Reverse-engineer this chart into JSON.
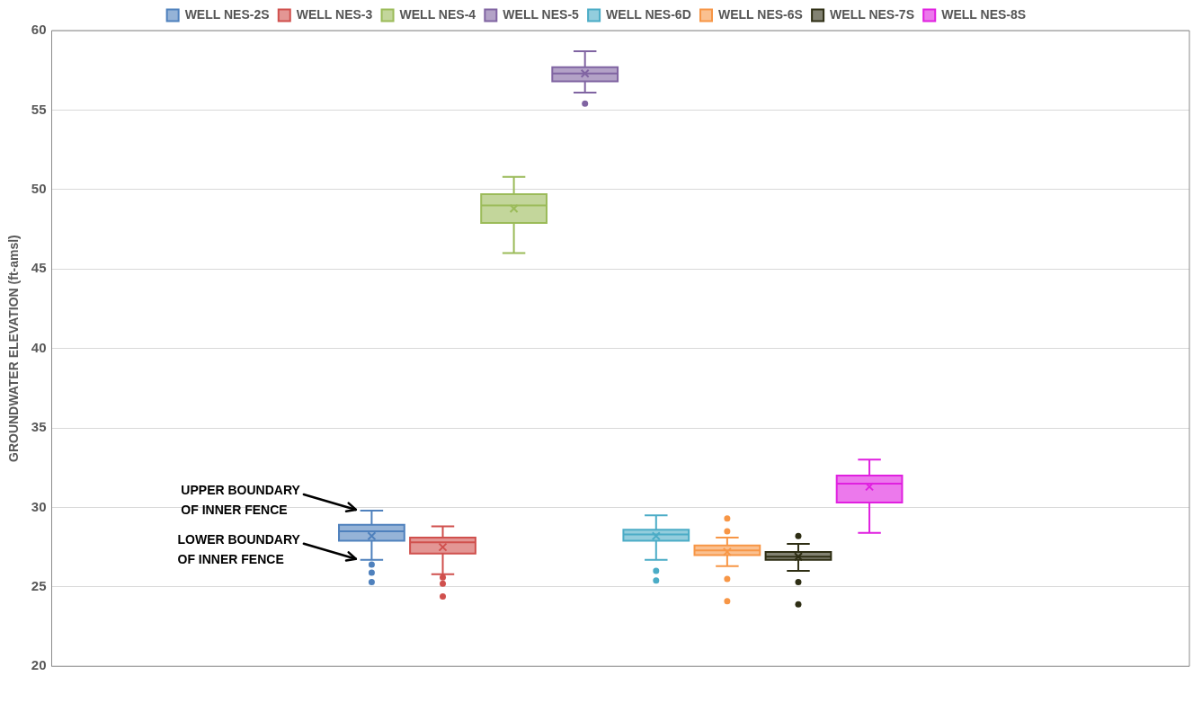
{
  "chart_data": {
    "type": "box",
    "ylabel": "GROUNDWATER ELEVATION (ft-amsl)",
    "categories": [
      null
    ],
    "ylim": [
      20,
      60
    ],
    "yticks": [
      20,
      25,
      30,
      35,
      40,
      45,
      50,
      55,
      60
    ],
    "grid": "y",
    "legend": "top",
    "marker": "circle",
    "annotations": [
      "UPPER BOUNDARY\nOF INNER FENCE",
      "LOWER BOUNDARY\nOF INNER FENCE"
    ],
    "series": [
      {
        "name": "WELL NES-2S",
        "color": "#4f81bd",
        "boxes": [
          {
            "low": 26.7,
            "q1": 27.9,
            "median": 28.5,
            "q3": 28.9,
            "high": 29.8,
            "mean": 28.2,
            "outliers": [
              26.4,
              25.9,
              25.3
            ]
          }
        ]
      },
      {
        "name": "WELL NES-3",
        "color": "#d0504d",
        "boxes": [
          {
            "low": 25.8,
            "q1": 27.1,
            "median": 27.8,
            "q3": 28.1,
            "high": 28.8,
            "mean": 27.5,
            "outliers": [
              25.6,
              25.2,
              24.4
            ]
          }
        ]
      },
      {
        "name": "WELL NES-4",
        "color": "#9bbb59",
        "boxes": [
          {
            "low": 46.0,
            "q1": 47.9,
            "median": 49.0,
            "q3": 49.7,
            "high": 50.8,
            "mean": 48.8
          }
        ]
      },
      {
        "name": "WELL NES-5",
        "color": "#8064a2",
        "boxes": [
          {
            "low": 56.1,
            "q1": 56.8,
            "median": 57.3,
            "q3": 57.7,
            "high": 58.7,
            "mean": 57.3,
            "outliers": [
              55.4
            ]
          }
        ]
      },
      {
        "name": "WELL NES-6D",
        "color": "#4bacc6",
        "boxes": [
          {
            "low": 26.7,
            "q1": 27.9,
            "median": 28.3,
            "q3": 28.6,
            "high": 29.5,
            "mean": 28.2,
            "outliers": [
              26.0,
              25.4
            ]
          }
        ]
      },
      {
        "name": "WELL NES-6S",
        "color": "#f79646",
        "boxes": [
          {
            "low": 26.3,
            "q1": 27.0,
            "median": 27.3,
            "q3": 27.6,
            "high": 28.1,
            "mean": 27.2,
            "outliers": [
              29.3,
              28.5,
              25.5,
              24.1
            ]
          }
        ]
      },
      {
        "name": "WELL NES-7S",
        "color": "#2e2e14",
        "boxes": [
          {
            "low": 26.0,
            "q1": 26.7,
            "median": 26.9,
            "q3": 27.2,
            "high": 27.7,
            "mean": 26.9,
            "outliers": [
              28.2,
              25.3,
              23.9
            ]
          }
        ]
      },
      {
        "name": "WELL NES-8S",
        "color": "#e020e0",
        "boxes": [
          {
            "low": 28.4,
            "q1": 30.3,
            "median": 31.5,
            "q3": 32.0,
            "high": 33.0,
            "mean": 31.3
          }
        ]
      }
    ]
  }
}
